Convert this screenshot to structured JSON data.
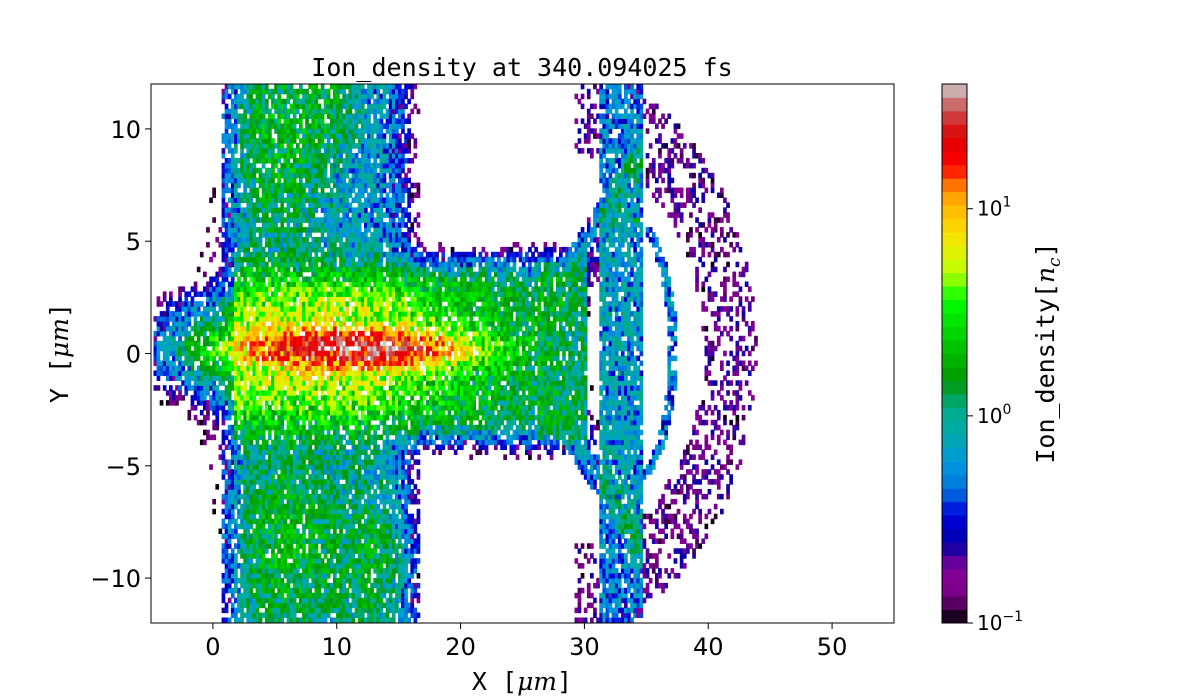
{
  "chart_data": {
    "type": "heatmap",
    "title": "Ion_density at 340.094025 fs",
    "xlabel": "X [μm]",
    "ylabel": "Y [μm]",
    "xlim": [
      -5,
      55
    ],
    "ylim": [
      -12,
      12
    ],
    "x_ticks": [
      0,
      10,
      20,
      30,
      40,
      50
    ],
    "x_tick_labels": [
      "0",
      "10",
      "20",
      "30",
      "40",
      "50"
    ],
    "y_ticks": [
      -10,
      -5,
      0,
      5,
      10
    ],
    "y_tick_labels": [
      "−10",
      "−5",
      "0",
      "5",
      "10"
    ],
    "colorbar": {
      "label": "Ion_density[n_c]",
      "scale": "log",
      "range": [
        0.1,
        40
      ],
      "ticks": [
        0.1,
        1,
        10
      ],
      "tick_labels": [
        {
          "base": "10",
          "exp": "−1"
        },
        {
          "base": "10",
          "exp": "0"
        },
        {
          "base": "10",
          "exp": "1"
        }
      ],
      "colormap": "nipy_spectral"
    },
    "features": [
      {
        "region": "dense core",
        "x": [
          4,
          17
        ],
        "y": [
          -1,
          1
        ],
        "density": 20
      },
      {
        "region": "main channel",
        "x": [
          2,
          30
        ],
        "y": [
          -4,
          4
        ],
        "density": 2
      },
      {
        "region": "transverse wings",
        "x": [
          1,
          16
        ],
        "y": [
          -12,
          12
        ],
        "density": 0.6
      },
      {
        "region": "shock shell",
        "x": [
          30,
          37
        ],
        "y": [
          -6,
          6
        ],
        "density": 0.3
      },
      {
        "region": "outer arc",
        "x": [
          36,
          44
        ],
        "y": [
          -11,
          11
        ],
        "density": 0.15
      }
    ],
    "grid": false
  }
}
